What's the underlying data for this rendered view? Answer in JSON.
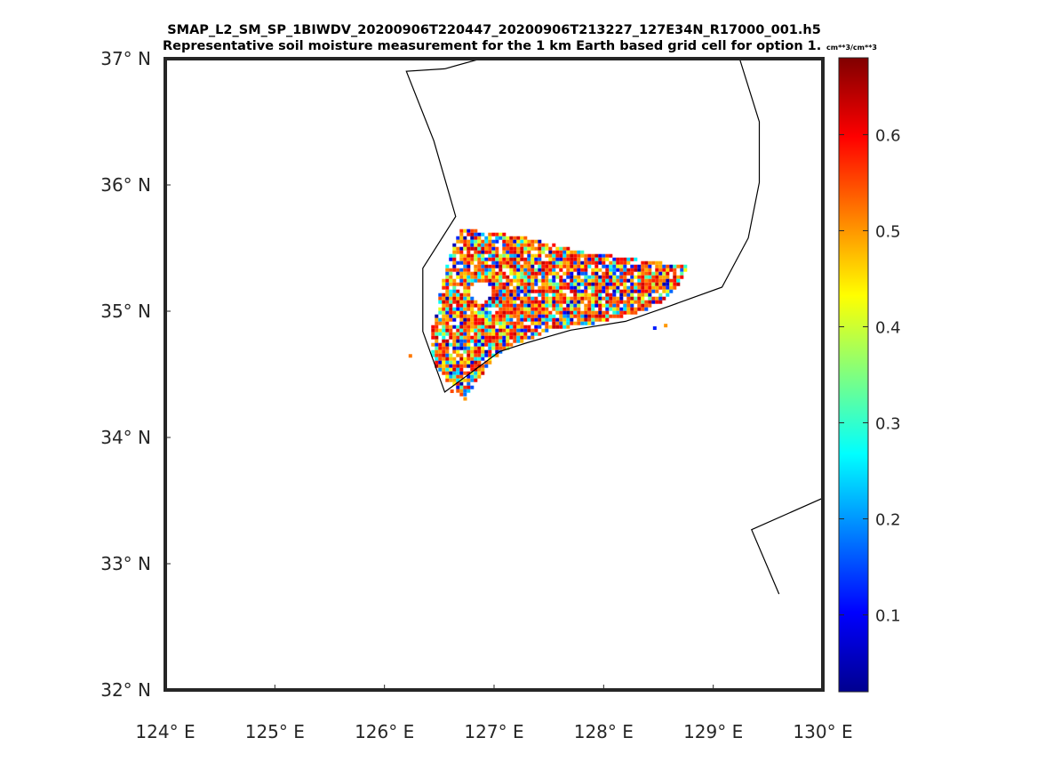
{
  "chart_data": {
    "type": "heatmap",
    "title": "SMAP_L2_SM_SP_1BIWDV_20200906T220447_20200906T213227_127E34N_R17000_001.h5",
    "subtitle": "Representative soil moisture measurement for the 1 km Earth based grid cell for option 1.",
    "units": "cm**3/cm**3",
    "xlim": [
      124,
      130
    ],
    "ylim": [
      32,
      37
    ],
    "x_ticks": [
      124,
      125,
      126,
      127,
      128,
      129,
      130
    ],
    "y_ticks": [
      32,
      33,
      34,
      35,
      36,
      37
    ],
    "x_tick_labels": [
      "124° E",
      "125° E",
      "126° E",
      "127° E",
      "128° E",
      "129° E",
      "130° E"
    ],
    "y_tick_labels": [
      "32° N",
      "33° N",
      "34° N",
      "35° N",
      "36° N",
      "37° N"
    ],
    "colorbar": {
      "colormap": "jet",
      "range": [
        0.02,
        0.68
      ],
      "ticks": [
        0.1,
        0.2,
        0.3,
        0.4,
        0.5,
        0.6
      ],
      "tick_labels": [
        "0.1",
        "0.2",
        "0.3",
        "0.4",
        "0.5",
        "0.6"
      ]
    },
    "swath_region": {
      "lon_range": [
        126.2,
        128.8
      ],
      "lat_range": [
        34.3,
        35.65
      ],
      "dominant_values": "0.45-0.60 (orange/red), with scattered 0.05-0.30 (blue/cyan) cells"
    },
    "coastlines": [
      [
        [
          126.55,
          36.92
        ],
        [
          126.88,
          37.0
        ]
      ],
      [
        [
          129.24,
          37.0
        ],
        [
          129.42,
          36.5
        ],
        [
          129.42,
          36.02
        ],
        [
          129.32,
          35.58
        ],
        [
          129.08,
          35.19
        ],
        [
          128.6,
          35.04
        ],
        [
          128.2,
          34.92
        ],
        [
          127.7,
          34.85
        ],
        [
          127.3,
          34.75
        ],
        [
          127.05,
          34.68
        ],
        [
          126.55,
          34.36
        ],
        [
          126.35,
          34.84
        ],
        [
          126.35,
          35.34
        ],
        [
          126.65,
          35.75
        ],
        [
          126.45,
          36.35
        ],
        [
          126.2,
          36.9
        ],
        [
          126.55,
          36.92
        ]
      ],
      [
        [
          129.6,
          32.76
        ],
        [
          129.35,
          33.27
        ],
        [
          130.0,
          33.52
        ]
      ]
    ],
    "grid": false,
    "legend": "colorbar-right"
  }
}
